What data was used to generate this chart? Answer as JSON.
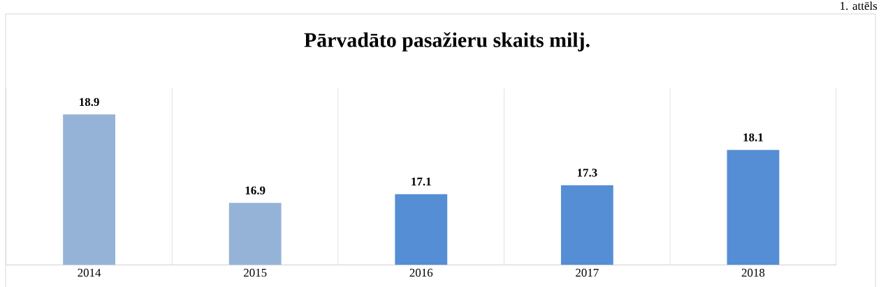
{
  "chart_data": {
    "type": "bar",
    "title": "Pārvadāto pasažieru skaits milj.",
    "categories": [
      "2014",
      "2015",
      "2016",
      "2017",
      "2018"
    ],
    "values": [
      18.9,
      16.9,
      17.1,
      17.3,
      18.1
    ],
    "colors": [
      "#95b3d7",
      "#95b3d7",
      "#558ed5",
      "#558ed5",
      "#558ed5"
    ],
    "ylim": [
      15.5,
      19.5
    ],
    "data_labels": true,
    "grid": "x",
    "tick_labels": "x",
    "annotations": [
      "1. attēls"
    ]
  }
}
